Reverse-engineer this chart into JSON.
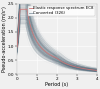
{
  "title": "",
  "xlabel": "Period (s)",
  "ylabel": "Pseudo-acceleration (m/s²)",
  "xlim": [
    0,
    4
  ],
  "ylim": [
    0,
    2.5
  ],
  "xticks": [
    0,
    1,
    2,
    3,
    4
  ],
  "yticks": [
    0.0,
    0.5,
    1.0,
    1.5,
    2.0,
    2.5
  ],
  "legend_labels": [
    "Converted (326)",
    "Elastic response spectrum EC8"
  ],
  "legend_colors": [
    "#607080",
    "#d06060"
  ],
  "n_spectra": 326,
  "peak_sa": 2.3,
  "T_end": 4.0,
  "ec8_color": "#cc7777",
  "spectra_color": "#607888",
  "spectra_alpha": 0.07,
  "bg_color": "#f0f0f0",
  "plot_bg_color": "#f0f0f0",
  "grid_color": "#ffffff",
  "figsize": [
    1.0,
    0.89
  ],
  "dpi": 100,
  "label_fontsize": 3.5,
  "tick_fontsize": 3,
  "legend_fontsize": 2.8
}
